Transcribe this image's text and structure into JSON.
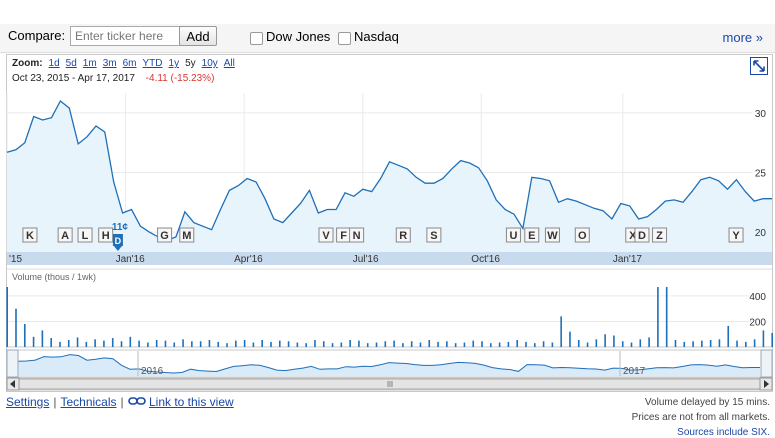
{
  "compare": {
    "label": "Compare:",
    "input_placeholder": "Enter ticker here",
    "input_value": "",
    "add_label": "Add",
    "checkboxes": [
      {
        "label": "Dow Jones",
        "checked": false
      },
      {
        "label": "Nasdaq",
        "checked": false
      }
    ],
    "more_label": "more »"
  },
  "zoom": {
    "label": "Zoom:",
    "options": [
      "1d",
      "5d",
      "1m",
      "3m",
      "6m",
      "YTD",
      "1y",
      "5y",
      "10y",
      "All"
    ],
    "selected": "5y"
  },
  "range": {
    "start": "Oct 23, 2015",
    "dash": "-",
    "end": "Apr 17, 2017",
    "change": "-4.11 (-15.23%)"
  },
  "chart_data": {
    "type": "area",
    "x_axis_labels": [
      "'15",
      "Jan'16",
      "Apr'16",
      "Jul'16",
      "Oct'16",
      "Jan'17"
    ],
    "y_axis_labels": [
      "30",
      "25",
      "20"
    ],
    "ylim": [
      18.5,
      31.5
    ],
    "price": [
      26.7,
      26.9,
      27.5,
      29.7,
      29.4,
      29.6,
      31.0,
      30.4,
      27.4,
      28.0,
      28.9,
      28.4,
      24.2,
      21.6,
      21.9,
      20.5,
      20.0,
      19.6,
      19.3,
      19.6,
      21.7,
      20.8,
      20.5,
      20.2,
      21.9,
      23.5,
      23.9,
      24.5,
      24.2,
      22.8,
      21.1,
      20.8,
      21.6,
      22.4,
      23.5,
      21.6,
      21.9,
      21.9,
      23.3,
      23.0,
      23.6,
      23.4,
      24.5,
      25.9,
      25.6,
      25.3,
      24.6,
      24.1,
      24.1,
      24.5,
      25.3,
      26.0,
      25.8,
      25.4,
      24.3,
      22.7,
      21.9,
      21.5,
      20.3,
      24.6,
      24.5,
      24.3,
      22.5,
      22.8,
      22.6,
      22.3,
      22.0,
      21.8,
      21.1,
      22.4,
      22.2,
      21.1,
      21.3,
      21.9,
      22.6,
      22.7,
      22.5,
      23.4,
      24.4,
      24.6,
      24.3,
      23.6,
      24.4,
      23.4,
      22.6,
      22.8,
      22.8
    ],
    "volume_axis_labels": [
      "400",
      "200"
    ],
    "volume_ylim": [
      0,
      470
    ],
    "volume_label": "Volume (thous / 1wk)",
    "volume": [
      470,
      300,
      180,
      80,
      130,
      70,
      40,
      55,
      75,
      40,
      60,
      50,
      70,
      45,
      80,
      50,
      35,
      55,
      50,
      35,
      60,
      45,
      45,
      55,
      40,
      30,
      50,
      55,
      35,
      55,
      40,
      50,
      45,
      35,
      30,
      55,
      45,
      30,
      35,
      55,
      50,
      30,
      35,
      45,
      50,
      30,
      45,
      35,
      55,
      40,
      45,
      30,
      35,
      50,
      45,
      30,
      35,
      40,
      55,
      40,
      30,
      45,
      35,
      240,
      120,
      55,
      35,
      60,
      100,
      90,
      45,
      35,
      60,
      75,
      470,
      470,
      55,
      40,
      45,
      50,
      55,
      60,
      165,
      50,
      40,
      60,
      130,
      110
    ],
    "markers": [
      {
        "letter": "K",
        "t": 0.03
      },
      {
        "letter": "A",
        "t": 0.076
      },
      {
        "letter": "L",
        "t": 0.102
      },
      {
        "letter": "H",
        "t": 0.129
      },
      {
        "letter": "G",
        "t": 0.206
      },
      {
        "letter": "M",
        "t": 0.235
      },
      {
        "letter": "V",
        "t": 0.417
      },
      {
        "letter": "F",
        "t": 0.44
      },
      {
        "letter": "N",
        "t": 0.457
      },
      {
        "letter": "R",
        "t": 0.518
      },
      {
        "letter": "S",
        "t": 0.558
      },
      {
        "letter": "U",
        "t": 0.662
      },
      {
        "letter": "E",
        "t": 0.686
      },
      {
        "letter": "W",
        "t": 0.713
      },
      {
        "letter": "O",
        "t": 0.752
      },
      {
        "letter": "X",
        "t": 0.818
      },
      {
        "letter": "D",
        "t": 0.83
      },
      {
        "letter": "Z",
        "t": 0.853
      },
      {
        "letter": "Y",
        "t": 0.953
      }
    ],
    "dividend": {
      "letter": "D",
      "amount": "11¢",
      "t": 0.145
    },
    "navigator_labels": [
      "2016",
      "2017"
    ]
  },
  "footer": {
    "settings": "Settings",
    "technicals": "Technicals",
    "link_view": "Link to this view",
    "note1": "Volume delayed by 15 mins.",
    "note2": "Prices are not from all markets.",
    "note3": "Sources include SIX."
  }
}
